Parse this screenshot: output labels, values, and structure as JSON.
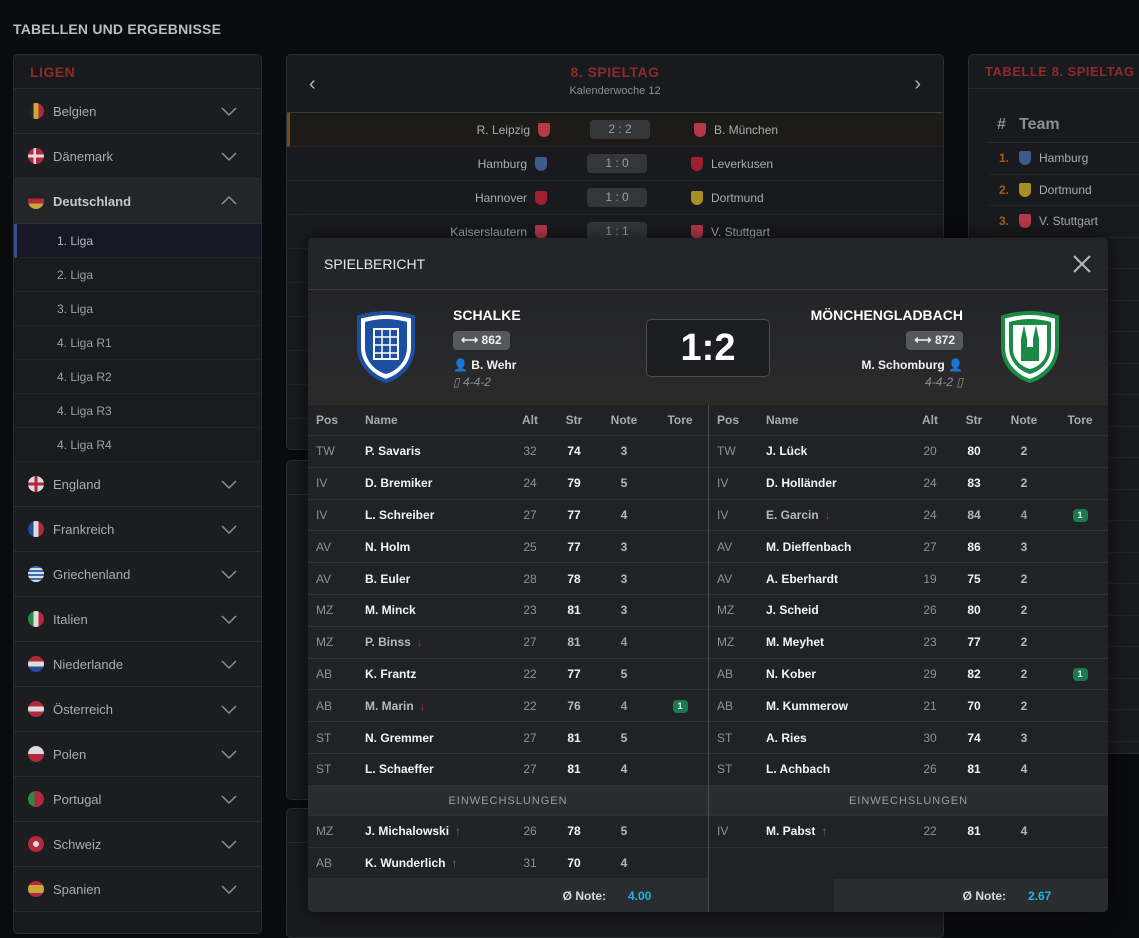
{
  "page_title": "TABELLEN UND ERGEBNISSE",
  "leagues": {
    "title": "LIGEN",
    "countries": [
      {
        "label": "Belgien",
        "flag": "belgium",
        "open": false
      },
      {
        "label": "Dänemark",
        "flag": "denmark",
        "open": false
      },
      {
        "label": "Deutschland",
        "flag": "germany",
        "open": true,
        "subs": [
          "1. Liga",
          "2. Liga",
          "3. Liga",
          "4. Liga R1",
          "4. Liga R2",
          "4. Liga R3",
          "4. Liga R4"
        ],
        "active_sub": "1. Liga"
      },
      {
        "label": "England",
        "flag": "england",
        "open": false
      },
      {
        "label": "Frankreich",
        "flag": "france",
        "open": false
      },
      {
        "label": "Griechenland",
        "flag": "greece",
        "open": false
      },
      {
        "label": "Italien",
        "flag": "italy",
        "open": false
      },
      {
        "label": "Niederlande",
        "flag": "netherlands",
        "open": false
      },
      {
        "label": "Österreich",
        "flag": "austria",
        "open": false
      },
      {
        "label": "Polen",
        "flag": "poland",
        "open": false
      },
      {
        "label": "Portugal",
        "flag": "portugal",
        "open": false
      },
      {
        "label": "Schweiz",
        "flag": "switzerland",
        "open": false
      },
      {
        "label": "Spanien",
        "flag": "spain",
        "open": false
      }
    ]
  },
  "matchday": {
    "title": "8. SPIELTAG",
    "subtitle": "Kalenderwoche 12",
    "prev_icon": "chevron-left-icon",
    "next_icon": "chevron-right-icon",
    "fixtures": [
      {
        "home": "R. Leipzig",
        "home_color": "#b8384a",
        "score": "2 : 2",
        "away": "B. München",
        "away_color": "#b8384a",
        "highlight": true
      },
      {
        "home": "Hamburg",
        "home_color": "#3d5a8a",
        "score": "1 : 0",
        "away": "Leverkusen",
        "away_color": "#a02030"
      },
      {
        "home": "Hannover",
        "home_color": "#a02030",
        "score": "1 : 0",
        "away": "Dortmund",
        "away_color": "#a89020"
      },
      {
        "home": "Kaiserslautern",
        "home_color": "#b8384a",
        "score": "1 : 1",
        "away": "V. Stuttgart",
        "away_color": "#b8384a"
      }
    ]
  },
  "table": {
    "title": "TABELLE 8. SPIELTAG",
    "col_rank": "#",
    "col_team": "Team",
    "rows": [
      {
        "rank": "1.",
        "team": "Hamburg",
        "color": "#3d5a8a"
      },
      {
        "rank": "2.",
        "team": "Dortmund",
        "color": "#a89020"
      },
      {
        "rank": "3.",
        "team": "V. Stuttgart",
        "color": "#b8384a"
      }
    ]
  },
  "report": {
    "title": "SPIELBERICHT",
    "close_icon": "close-icon",
    "score": "1:2",
    "home": {
      "name": "SCHALKE",
      "strength": "862",
      "coach": "B. Wehr",
      "formation": "4-4-2",
      "crest_color": "#1d4fa0"
    },
    "away": {
      "name": "MÖNCHENGLADBACH",
      "strength": "872",
      "coach": "M. Schomburg",
      "formation": "4-4-2",
      "crest_color": "#1a8a45"
    },
    "columns": [
      "Pos",
      "Name",
      "Alt",
      "Str",
      "Note",
      "Tore"
    ],
    "subs_label": "EINWECHSLUNGEN",
    "avg_label": "Ø Note:",
    "home_players": [
      {
        "pos": "TW",
        "name": "P. Savaris",
        "alt": "32",
        "str": "74",
        "note": "3"
      },
      {
        "pos": "IV",
        "name": "D. Bremiker",
        "alt": "24",
        "str": "79",
        "note": "5"
      },
      {
        "pos": "IV",
        "name": "L. Schreiber",
        "alt": "27",
        "str": "77",
        "note": "4"
      },
      {
        "pos": "AV",
        "name": "N. Holm",
        "alt": "25",
        "str": "77",
        "note": "3"
      },
      {
        "pos": "AV",
        "name": "B. Euler",
        "alt": "28",
        "str": "78",
        "note": "3"
      },
      {
        "pos": "MZ",
        "name": "M. Minck",
        "alt": "23",
        "str": "81",
        "note": "3"
      },
      {
        "pos": "MZ",
        "name": "P. Binss",
        "alt": "27",
        "str": "81",
        "note": "4",
        "out": true
      },
      {
        "pos": "AB",
        "name": "K. Frantz",
        "alt": "22",
        "str": "77",
        "note": "5"
      },
      {
        "pos": "AB",
        "name": "M. Marin",
        "alt": "22",
        "str": "76",
        "note": "4",
        "out": true,
        "goals": "1"
      },
      {
        "pos": "ST",
        "name": "N. Gremmer",
        "alt": "27",
        "str": "81",
        "note": "5"
      },
      {
        "pos": "ST",
        "name": "L. Schaeffer",
        "alt": "27",
        "str": "81",
        "note": "4"
      }
    ],
    "home_subs": [
      {
        "pos": "MZ",
        "name": "J. Michalowski",
        "alt": "26",
        "str": "78",
        "note": "5",
        "in": true
      },
      {
        "pos": "AB",
        "name": "K. Wunderlich",
        "alt": "31",
        "str": "70",
        "note": "4",
        "in": true
      }
    ],
    "home_avg": "4.00",
    "away_players": [
      {
        "pos": "TW",
        "name": "J. Lück",
        "alt": "20",
        "str": "80",
        "note": "2"
      },
      {
        "pos": "IV",
        "name": "D. Holländer",
        "alt": "24",
        "str": "83",
        "note": "2"
      },
      {
        "pos": "IV",
        "name": "E. Garcin",
        "alt": "24",
        "str": "84",
        "note": "4",
        "out": true,
        "goals": "1"
      },
      {
        "pos": "AV",
        "name": "M. Dieffenbach",
        "alt": "27",
        "str": "86",
        "note": "3"
      },
      {
        "pos": "AV",
        "name": "A. Eberhardt",
        "alt": "19",
        "str": "75",
        "note": "2"
      },
      {
        "pos": "MZ",
        "name": "J. Scheid",
        "alt": "26",
        "str": "80",
        "note": "2"
      },
      {
        "pos": "MZ",
        "name": "M. Meyhet",
        "alt": "23",
        "str": "77",
        "note": "2"
      },
      {
        "pos": "AB",
        "name": "N. Kober",
        "alt": "29",
        "str": "82",
        "note": "2",
        "goals": "1"
      },
      {
        "pos": "AB",
        "name": "M. Kummerow",
        "alt": "21",
        "str": "70",
        "note": "2"
      },
      {
        "pos": "ST",
        "name": "A. Ries",
        "alt": "30",
        "str": "74",
        "note": "3"
      },
      {
        "pos": "ST",
        "name": "L. Achbach",
        "alt": "26",
        "str": "81",
        "note": "4"
      }
    ],
    "away_subs": [
      {
        "pos": "IV",
        "name": "M. Pabst",
        "alt": "22",
        "str": "81",
        "note": "4",
        "in": true
      }
    ],
    "away_avg": "2.67"
  }
}
